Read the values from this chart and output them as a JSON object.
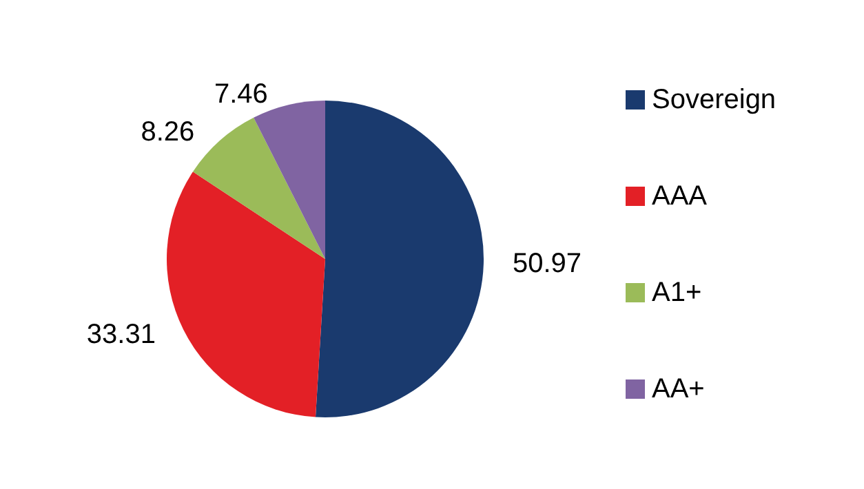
{
  "chart_data": {
    "type": "pie",
    "categories": [
      "Sovereign",
      "AAA",
      "A1+",
      "AA+"
    ],
    "values": [
      50.97,
      33.31,
      8.26,
      7.46
    ],
    "colors": [
      "#1a3a6e",
      "#e32026",
      "#9bbb59",
      "#8064a2"
    ],
    "data_labels": true,
    "legend": "right"
  }
}
